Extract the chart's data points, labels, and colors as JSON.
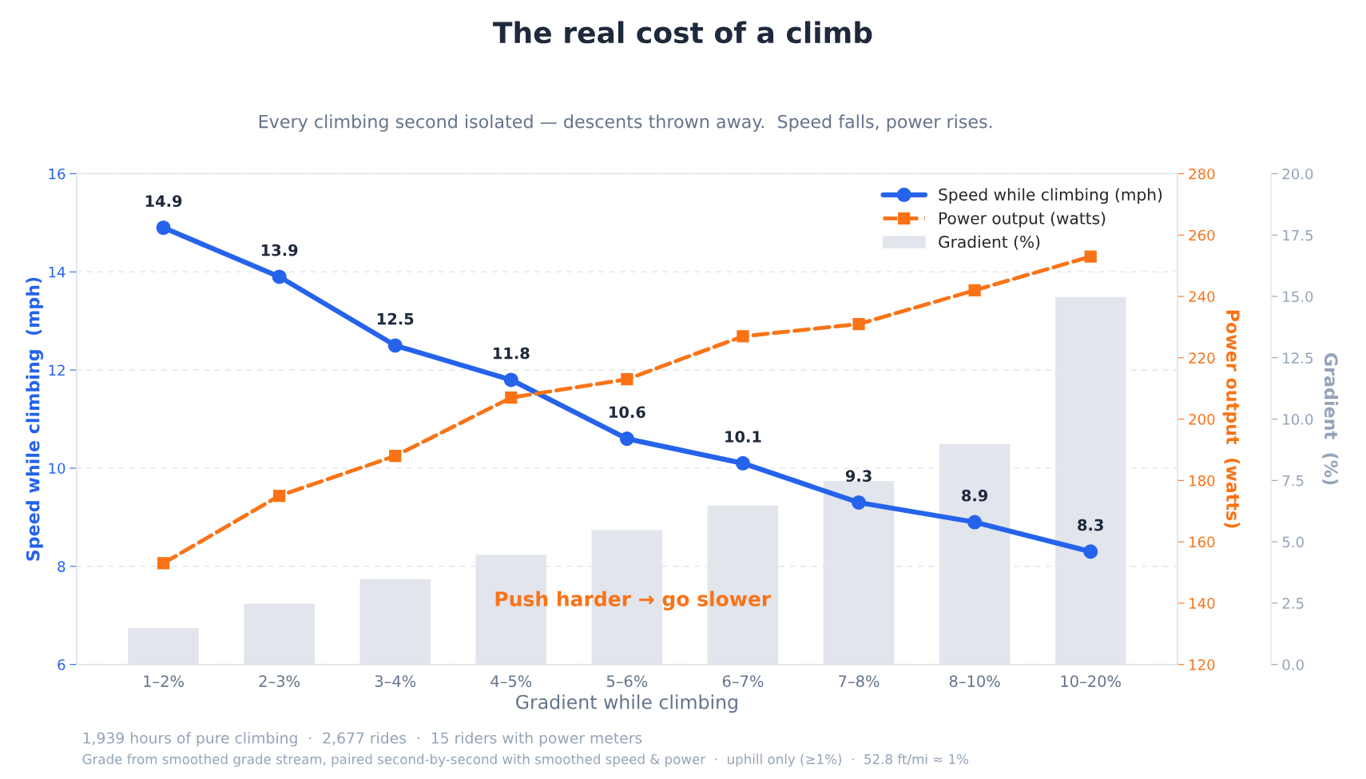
{
  "chart_data": {
    "type": "line",
    "title": "The real cost of a climb",
    "subtitle": "Every climbing second isolated — descents thrown away.  Speed falls, power rises.",
    "xlabel": "Gradient while climbing",
    "ylabel": "Speed while climbing  (mph)",
    "y2label": "Power output  (watts)",
    "y3label": "Gradient  (%)",
    "categories": [
      "1–2%",
      "2–3%",
      "3–4%",
      "4–5%",
      "5–6%",
      "6–7%",
      "7–8%",
      "8–10%",
      "10–20%"
    ],
    "series": [
      {
        "name": "Speed while climbing (mph)",
        "color": "#2563eb",
        "marker": "circle",
        "line_style": "solid",
        "data_labels": true,
        "values": [
          14.9,
          13.9,
          12.5,
          11.8,
          10.6,
          10.1,
          9.3,
          8.9,
          8.3
        ]
      },
      {
        "name": "Power output (watts)",
        "type": "line",
        "axis": "y2",
        "color": "#f97316",
        "marker": "square",
        "line_style": "dashed",
        "values": [
          153,
          175,
          188,
          207,
          213,
          227,
          231,
          242,
          253
        ]
      },
      {
        "name": "Gradient (%)",
        "type": "bar",
        "axis": "y3",
        "color": "#e2e5ec",
        "values": [
          1.5,
          2.5,
          3.5,
          4.5,
          5.5,
          6.5,
          7.5,
          9.0,
          15.0
        ]
      }
    ],
    "ylim": [
      6,
      16
    ],
    "yticks": [
      6,
      8,
      10,
      12,
      14,
      16
    ],
    "y2lim": [
      120,
      280
    ],
    "y2ticks": [
      120,
      140,
      160,
      180,
      200,
      220,
      240,
      260,
      280
    ],
    "y3lim": [
      0,
      20
    ],
    "y3ticks": [
      {
        "value": 0,
        "label": "0.0"
      },
      {
        "value": 2.5,
        "label": "2.5"
      },
      {
        "value": 5,
        "label": "5.0"
      },
      {
        "value": 7.5,
        "label": "7.5"
      },
      {
        "value": 10,
        "label": "10.0"
      },
      {
        "value": 12.5,
        "label": "12.5"
      },
      {
        "value": 15,
        "label": "15.0"
      },
      {
        "value": 17.5,
        "label": "17.5"
      },
      {
        "value": 20,
        "label": "20.0"
      }
    ],
    "grid": "y",
    "legend": "top right",
    "annotations": [
      "Push harder → go slower",
      "1,939 hours of pure climbing  ·  2,677 rides  ·  15 riders with power meters",
      "Grade from smoothed grade stream, paired second-by-second with smoothed speed & power  ·  uphill only (≥1%)  ·  52.8 ft/mi ≈ 1%"
    ]
  }
}
